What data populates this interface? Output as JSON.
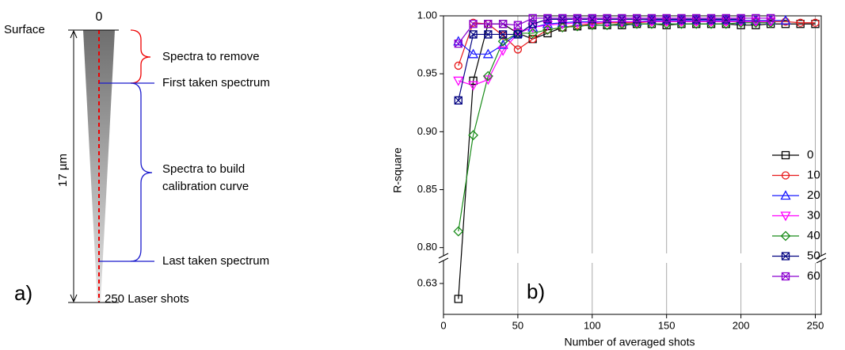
{
  "diagram": {
    "zero": "0",
    "surface": "Surface",
    "remove": "Spectra to remove",
    "first": "First taken spectrum",
    "build_line1": "Spectra to build",
    "build_line2": "calibration curve",
    "last": "Last taken spectrum",
    "depth": "17 µm",
    "shots": "250 Laser shots",
    "panel": "a)"
  },
  "chart_data": {
    "type": "line",
    "annotation": "b)",
    "xlabel": "Number of averaged shots",
    "ylabel": "R-square",
    "x": [
      10,
      20,
      30,
      40,
      50,
      60,
      70,
      80,
      90,
      100,
      110,
      120,
      130,
      140,
      150,
      160,
      170,
      180,
      190,
      200,
      210,
      220,
      230,
      240,
      250
    ],
    "xlim": [
      0,
      254
    ],
    "xticks": [
      0,
      50,
      100,
      150,
      200,
      250
    ],
    "ylim": [
      0.795,
      1.0
    ],
    "yticks": [
      {
        "value": 0.8,
        "label": "0.80"
      },
      0.85,
      {
        "value": 0.9,
        "label": "0.90"
      },
      0.95,
      {
        "value": 1.0,
        "label": "1.00"
      }
    ],
    "ylim_lower": [
      0.6,
      0.65
    ],
    "yticks_lower": [
      0.63
    ],
    "grid": "x",
    "legend": "lower right",
    "series": [
      {
        "name": "0",
        "color": "#000000",
        "marker": "square",
        "values": [
          0.615,
          0.944,
          0.993,
          0.993,
          0.985,
          0.98,
          0.985,
          0.99,
          0.991,
          0.992,
          0.992,
          0.992,
          0.993,
          0.993,
          0.992,
          0.993,
          0.993,
          0.993,
          0.993,
          0.992,
          0.992,
          0.993,
          0.993,
          0.993,
          0.993
        ]
      },
      {
        "name": "10",
        "color": "#e8191b",
        "marker": "circle",
        "values": [
          0.957,
          0.994,
          0.993,
          0.983,
          0.971,
          0.98,
          0.988,
          0.99,
          0.992,
          0.993,
          0.994,
          0.994,
          0.994,
          0.995,
          0.995,
          0.995,
          0.995,
          0.995,
          0.995,
          0.995,
          0.995,
          0.995,
          0.995,
          0.994,
          0.994
        ]
      },
      {
        "name": "20",
        "color": "#1a1aff",
        "marker": "triangle",
        "values": [
          0.978,
          0.967,
          0.967,
          0.975,
          0.985,
          0.99,
          0.993,
          0.994,
          0.995,
          0.995,
          0.995,
          0.995,
          0.995,
          0.996,
          0.996,
          0.996,
          0.996,
          0.996,
          0.996,
          0.996,
          0.996,
          0.996,
          0.996,
          null,
          null
        ]
      },
      {
        "name": "30",
        "color": "#ff00ff",
        "marker": "triangle-down",
        "values": [
          0.944,
          0.94,
          0.945,
          0.97,
          0.985,
          0.99,
          0.992,
          0.993,
          0.994,
          0.994,
          0.995,
          0.995,
          0.995,
          0.995,
          0.995,
          0.995,
          0.995,
          0.995,
          0.995,
          0.995,
          0.995,
          0.995,
          null,
          null,
          null
        ]
      },
      {
        "name": "40",
        "color": "#1a8c1a",
        "marker": "diamond",
        "values": [
          0.814,
          0.897,
          0.948,
          0.978,
          0.985,
          0.985,
          0.988,
          0.99,
          0.991,
          0.992,
          0.992,
          0.993,
          0.993,
          0.993,
          0.993,
          0.993,
          0.993,
          0.993,
          0.993,
          0.994,
          0.994,
          0.994,
          null,
          null,
          null
        ]
      },
      {
        "name": "50",
        "color": "#000080",
        "marker": "x-square",
        "values": [
          0.927,
          0.984,
          0.984,
          0.984,
          0.984,
          0.993,
          0.997,
          0.997,
          0.997,
          0.997,
          0.997,
          0.997,
          0.997,
          0.997,
          0.997,
          0.997,
          0.997,
          0.997,
          0.997,
          0.997,
          null,
          null,
          null,
          null,
          null
        ]
      },
      {
        "name": "60",
        "color": "#8b00d0",
        "marker": "x-square",
        "values": [
          0.976,
          0.993,
          0.993,
          0.993,
          0.992,
          0.998,
          0.998,
          0.998,
          0.998,
          0.998,
          0.998,
          0.998,
          0.998,
          0.998,
          0.998,
          0.998,
          0.998,
          0.998,
          0.998,
          0.998,
          0.998,
          0.998,
          null,
          null,
          null
        ]
      }
    ]
  }
}
